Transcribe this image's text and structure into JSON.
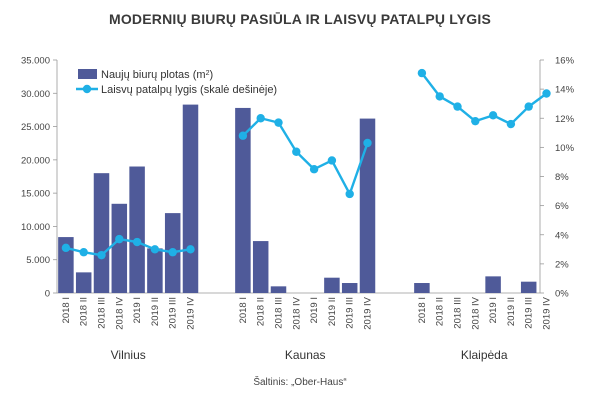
{
  "title": "MODERNIŲ BIURŲ PASIŪLA IR LAISVŲ PATALPŲ LYGIS",
  "source": "Šaltinis: „Ober-Haus“",
  "chart_data": {
    "type": "bar+line",
    "groups": [
      "Vilnius",
      "Kaunas",
      "Klaipėda"
    ],
    "periods": [
      "2018 I",
      "2018 II",
      "2018 III",
      "2018 IV",
      "2019 I",
      "2019 II",
      "2019 III",
      "2019 IV"
    ],
    "series": [
      {
        "name": "Naujų biurų plotas (m²)",
        "kind": "bar",
        "axis": "left",
        "color": "#4f5a99",
        "values": [
          [
            8400,
            3100,
            18000,
            13400,
            19000,
            6700,
            12000,
            28300
          ],
          [
            27800,
            7800,
            1000,
            null,
            null,
            2300,
            1500,
            26200
          ],
          [
            1500,
            null,
            null,
            null,
            2500,
            null,
            1700,
            null
          ]
        ]
      },
      {
        "name": "Laisvų patalpų lygis (skalė dešinėje)",
        "kind": "line",
        "axis": "right",
        "color": "#1fb0e6",
        "values": [
          [
            3.1,
            2.8,
            2.6,
            3.7,
            3.5,
            3.0,
            2.8,
            3.0
          ],
          [
            10.8,
            12.0,
            11.7,
            9.7,
            8.5,
            9.1,
            6.8,
            10.3
          ],
          [
            15.1,
            13.5,
            12.8,
            11.8,
            12.2,
            11.6,
            12.8,
            13.7
          ]
        ]
      }
    ],
    "y_left": {
      "min": 0,
      "max": 35000,
      "step": 5000,
      "ticks": [
        "0",
        "5.000",
        "10.000",
        "15.000",
        "20.000",
        "25.000",
        "30.000",
        "35.000"
      ]
    },
    "y_right": {
      "min": 0,
      "max": 16,
      "step": 2,
      "ticks": [
        "0%",
        "2%",
        "4%",
        "6%",
        "8%",
        "10%",
        "12%",
        "14%",
        "16%"
      ]
    },
    "legend": {
      "position": "top-left",
      "bar_label": "Naujų biurų plotas (m",
      "bar_label_sup": "2",
      "bar_label_end": ")",
      "line_label": "Laisvų patalpų lygis (skalė dešinėje)"
    },
    "grid": false
  }
}
